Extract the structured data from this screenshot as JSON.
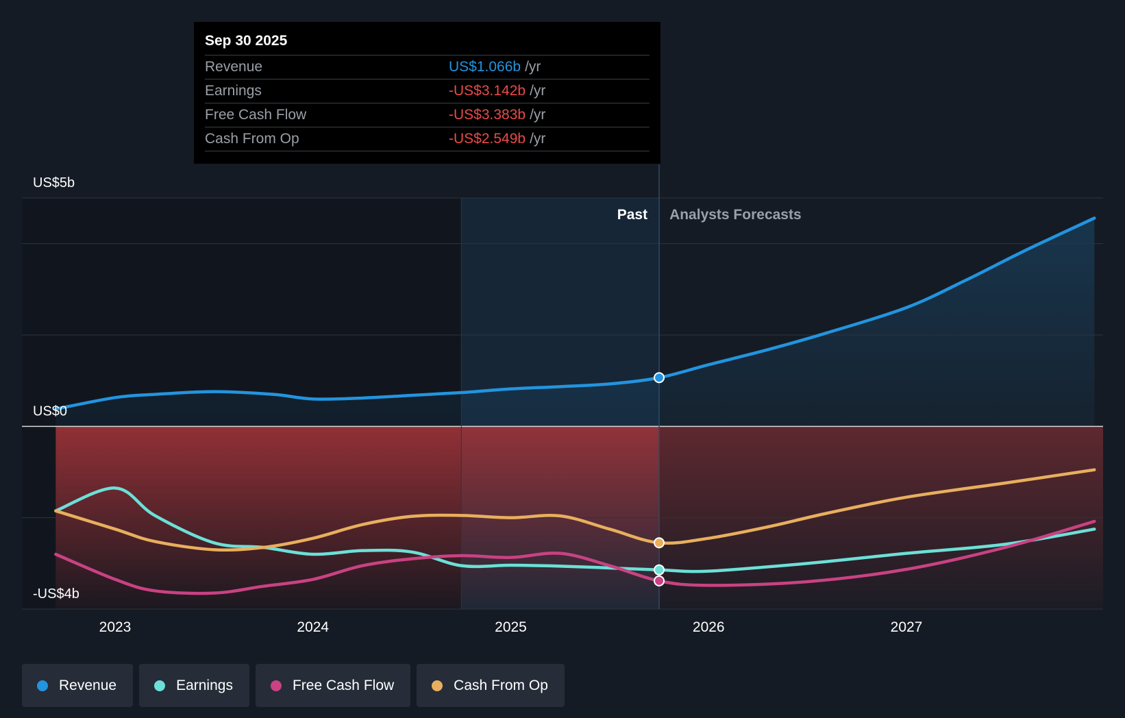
{
  "chart_data": {
    "type": "line",
    "title": "",
    "y_axis": {
      "ylim": [
        -4,
        5
      ],
      "labels": [
        "US$5b",
        "US$0",
        "-US$4b"
      ],
      "label_values": [
        5,
        0,
        -4
      ],
      "gridlines": [
        5,
        4,
        2,
        0,
        -2,
        -4
      ]
    },
    "x_axis": {
      "ticks": [
        "2023",
        "2024",
        "2025",
        "2026",
        "2027"
      ],
      "tick_values": [
        2023.0,
        2024.0,
        2025.0,
        2026.0,
        2027.0
      ],
      "xlim": [
        2022.48,
        2027.95
      ]
    },
    "split": {
      "past_label": "Past",
      "forecast_label": "Analysts Forecasts",
      "split_x": 2025.75,
      "shade_start_x": 2024.75
    },
    "series": [
      {
        "name": "Revenue",
        "color": "#2394df",
        "points": [
          [
            2022.7,
            0.38
          ],
          [
            2023.0,
            0.63
          ],
          [
            2023.2,
            0.7
          ],
          [
            2023.5,
            0.76
          ],
          [
            2023.8,
            0.7
          ],
          [
            2024.0,
            0.6
          ],
          [
            2024.25,
            0.62
          ],
          [
            2024.5,
            0.68
          ],
          [
            2024.75,
            0.74
          ],
          [
            2025.0,
            0.82
          ],
          [
            2025.25,
            0.87
          ],
          [
            2025.5,
            0.93
          ],
          [
            2025.75,
            1.066
          ],
          [
            2026.0,
            1.35
          ],
          [
            2026.3,
            1.68
          ],
          [
            2026.6,
            2.05
          ],
          [
            2027.0,
            2.6
          ],
          [
            2027.3,
            3.2
          ],
          [
            2027.6,
            3.85
          ],
          [
            2027.95,
            4.56
          ]
        ]
      },
      {
        "name": "Earnings",
        "color": "#6ce0d7",
        "points": [
          [
            2022.7,
            -1.85
          ],
          [
            2023.0,
            -1.35
          ],
          [
            2023.2,
            -1.95
          ],
          [
            2023.5,
            -2.55
          ],
          [
            2023.75,
            -2.65
          ],
          [
            2024.0,
            -2.8
          ],
          [
            2024.25,
            -2.72
          ],
          [
            2024.5,
            -2.75
          ],
          [
            2024.75,
            -3.05
          ],
          [
            2025.0,
            -3.04
          ],
          [
            2025.25,
            -3.06
          ],
          [
            2025.5,
            -3.1
          ],
          [
            2025.75,
            -3.142
          ],
          [
            2026.0,
            -3.17
          ],
          [
            2026.5,
            -3.0
          ],
          [
            2027.0,
            -2.78
          ],
          [
            2027.5,
            -2.58
          ],
          [
            2027.95,
            -2.25
          ]
        ]
      },
      {
        "name": "Free Cash Flow",
        "color": "#c94283",
        "points": [
          [
            2022.7,
            -2.8
          ],
          [
            2023.0,
            -3.35
          ],
          [
            2023.2,
            -3.6
          ],
          [
            2023.5,
            -3.65
          ],
          [
            2023.75,
            -3.5
          ],
          [
            2024.0,
            -3.35
          ],
          [
            2024.25,
            -3.05
          ],
          [
            2024.5,
            -2.9
          ],
          [
            2024.75,
            -2.83
          ],
          [
            2025.0,
            -2.87
          ],
          [
            2025.25,
            -2.78
          ],
          [
            2025.5,
            -3.05
          ],
          [
            2025.75,
            -3.383
          ],
          [
            2026.0,
            -3.48
          ],
          [
            2026.5,
            -3.4
          ],
          [
            2027.0,
            -3.13
          ],
          [
            2027.5,
            -2.65
          ],
          [
            2027.95,
            -2.08
          ]
        ]
      },
      {
        "name": "Cash From Op",
        "color": "#e8af5e",
        "points": [
          [
            2022.7,
            -1.85
          ],
          [
            2023.0,
            -2.25
          ],
          [
            2023.2,
            -2.52
          ],
          [
            2023.5,
            -2.7
          ],
          [
            2023.75,
            -2.65
          ],
          [
            2024.0,
            -2.45
          ],
          [
            2024.25,
            -2.15
          ],
          [
            2024.5,
            -1.97
          ],
          [
            2024.75,
            -1.95
          ],
          [
            2025.0,
            -2.0
          ],
          [
            2025.25,
            -1.96
          ],
          [
            2025.5,
            -2.25
          ],
          [
            2025.75,
            -2.549
          ],
          [
            2026.0,
            -2.45
          ],
          [
            2026.3,
            -2.2
          ],
          [
            2026.6,
            -1.9
          ],
          [
            2027.0,
            -1.55
          ],
          [
            2027.5,
            -1.24
          ],
          [
            2027.95,
            -0.95
          ]
        ]
      }
    ],
    "highlight_x": 2025.75,
    "tooltip": {
      "date": "Sep 30 2025",
      "rows": [
        {
          "label": "Revenue",
          "value": "US$1.066b",
          "unit": "/yr",
          "color": "#2394df"
        },
        {
          "label": "Earnings",
          "value": "-US$3.142b",
          "unit": "/yr",
          "color": "#e84a4a"
        },
        {
          "label": "Free Cash Flow",
          "value": "-US$3.383b",
          "unit": "/yr",
          "color": "#e84a4a"
        },
        {
          "label": "Cash From Op",
          "value": "-US$2.549b",
          "unit": "/yr",
          "color": "#e84a4a"
        }
      ]
    },
    "legend": [
      {
        "label": "Revenue",
        "color": "#2394df"
      },
      {
        "label": "Earnings",
        "color": "#6ce0d7"
      },
      {
        "label": "Free Cash Flow",
        "color": "#c94283"
      },
      {
        "label": "Cash From Op",
        "color": "#e8af5e"
      }
    ]
  }
}
